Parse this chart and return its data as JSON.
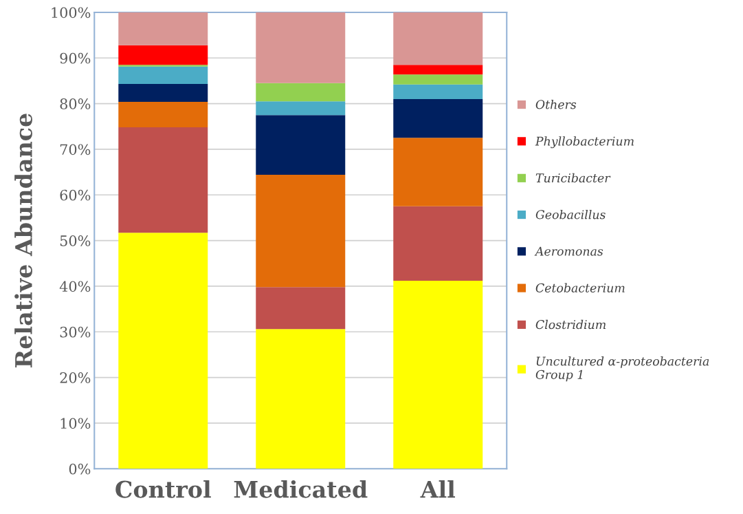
{
  "chart_data": {
    "type": "bar",
    "stacked": true,
    "ylabel": "Relative Abundance",
    "categories": [
      "Control",
      "Medicated",
      "All"
    ],
    "series": [
      {
        "name": "Uncultured α-proteobacteria\nGroup 1",
        "color": "#ffff00",
        "values": [
          51.7,
          30.6,
          41.2
        ]
      },
      {
        "name": "Clostridium",
        "color": "#c0504d",
        "values": [
          23.1,
          9.2,
          16.3
        ]
      },
      {
        "name": "Cetobacterium",
        "color": "#e36c09",
        "values": [
          5.6,
          24.6,
          15.0
        ]
      },
      {
        "name": "Aeromonas",
        "color": "#002060",
        "values": [
          3.9,
          13.1,
          8.5
        ]
      },
      {
        "name": "Geobacillus",
        "color": "#4bacc6",
        "values": [
          3.8,
          3.0,
          3.2
        ]
      },
      {
        "name": "Turicibacter",
        "color": "#92d050",
        "values": [
          0.4,
          4.0,
          2.2
        ]
      },
      {
        "name": "Phyllobacterium",
        "color": "#ff0000",
        "values": [
          4.3,
          0,
          2.1
        ]
      },
      {
        "name": "Others",
        "color": "#d99694",
        "values": [
          7.2,
          15.5,
          11.5
        ]
      }
    ],
    "ylim": [
      0,
      100
    ],
    "yticks": [
      {
        "value": 0,
        "label": "0%"
      },
      {
        "value": 10,
        "label": "10%"
      },
      {
        "value": 20,
        "label": "20%"
      },
      {
        "value": 30,
        "label": "30%"
      },
      {
        "value": 40,
        "label": "40%"
      },
      {
        "value": 50,
        "label": "50%"
      },
      {
        "value": 60,
        "label": "60%"
      },
      {
        "value": 70,
        "label": "70%"
      },
      {
        "value": 80,
        "label": "80%"
      },
      {
        "value": 90,
        "label": "90%"
      },
      {
        "value": 100,
        "label": "100%"
      }
    ],
    "grid": "y",
    "legend": "right"
  }
}
